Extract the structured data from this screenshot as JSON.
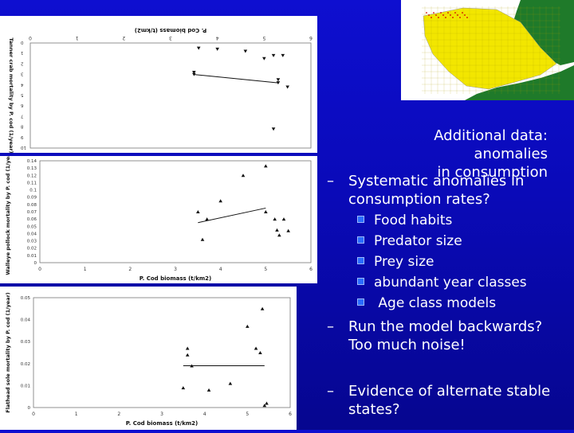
{
  "slide": {
    "heading_line1": "Additional data: anomalies",
    "heading_line2": "in consumption",
    "points": [
      {
        "marker": "–",
        "line1": "Systematic anomalies in",
        "line2": "consumption rates?"
      },
      {
        "marker": "–",
        "line1": "Run the model backwards?",
        "line2": "Too much noise!"
      },
      {
        "marker": "–",
        "line1": "Evidence of alternate stable",
        "line2": "states?"
      }
    ],
    "subpoints": [
      "Food habits",
      "Predator size",
      "Prey size",
      "abundant year classes",
      " Age class models"
    ],
    "colors": {
      "background": "#0a0ab8",
      "text": "#ffffff",
      "bullet": "#2a6cff"
    }
  },
  "map": {
    "colors": {
      "land": "#1f7a2a",
      "sea": "#ffffff",
      "grid": "#f2e600",
      "stations": "#d40000"
    }
  },
  "chart_data": [
    {
      "type": "scatter",
      "flipped_vertically": true,
      "xlabel": "P. Cod biomass (t/km2)",
      "ylabel": "Tanner crab mortality by P. cod (1/year)",
      "xlim": [
        0,
        6
      ],
      "ylim": [
        0,
        10
      ],
      "x_ticks": [
        "0",
        "1",
        "2",
        "3",
        "4",
        "5",
        "6"
      ],
      "y_ticks": [
        "0",
        "1",
        "2",
        "3",
        "4",
        "5",
        "6",
        "7",
        "8",
        "9",
        "10"
      ],
      "points": [
        [
          3.5,
          2.8
        ],
        [
          3.5,
          3.0
        ],
        [
          3.6,
          0.5
        ],
        [
          4.0,
          0.6
        ],
        [
          4.6,
          0.8
        ],
        [
          5.0,
          1.5
        ],
        [
          5.2,
          1.2
        ],
        [
          5.3,
          3.8
        ],
        [
          5.3,
          3.5
        ],
        [
          5.4,
          1.2
        ],
        [
          5.5,
          4.2
        ],
        [
          5.2,
          8.2
        ]
      ],
      "trendline": [
        [
          3.5,
          3.0
        ],
        [
          5.3,
          3.8
        ]
      ]
    },
    {
      "type": "scatter",
      "xlabel": "P. Cod biomass (t/km2)",
      "ylabel": "Walleye pollock mortality by P. cod (1/year)",
      "xlim": [
        0,
        6
      ],
      "ylim": [
        0,
        0.14
      ],
      "x_ticks": [
        "0",
        "1",
        "2",
        "3",
        "4",
        "5",
        "6"
      ],
      "y_ticks": [
        "0",
        "0.01",
        "0.02",
        "0.03",
        "0.04",
        "0.05",
        "0.06",
        "0.07",
        "0.08",
        "0.09",
        "0.1",
        "0.11",
        "0.12",
        "0.13",
        "0.14"
      ],
      "points": [
        [
          3.5,
          0.07
        ],
        [
          3.6,
          0.032
        ],
        [
          3.7,
          0.06
        ],
        [
          4.0,
          0.085
        ],
        [
          4.5,
          0.12
        ],
        [
          5.0,
          0.133
        ],
        [
          5.0,
          0.07
        ],
        [
          5.2,
          0.06
        ],
        [
          5.25,
          0.045
        ],
        [
          5.3,
          0.038
        ],
        [
          5.4,
          0.06
        ],
        [
          5.5,
          0.044
        ]
      ],
      "trendline": [
        [
          3.5,
          0.055
        ],
        [
          5.0,
          0.075
        ]
      ]
    },
    {
      "type": "scatter",
      "xlabel": "P. Cod biomass (t/km2)",
      "ylabel": "Flathead sole mortality by P. cod (1/year)",
      "xlim": [
        0,
        6
      ],
      "ylim": [
        0,
        0.05
      ],
      "x_ticks": [
        "0",
        "1",
        "2",
        "3",
        "4",
        "5",
        "6"
      ],
      "y_ticks": [
        "0",
        "0.01",
        "0.02",
        "0.03",
        "0.04",
        "0.05"
      ],
      "points": [
        [
          3.5,
          0.009
        ],
        [
          3.6,
          0.024
        ],
        [
          3.6,
          0.027
        ],
        [
          3.7,
          0.019
        ],
        [
          4.1,
          0.008
        ],
        [
          4.6,
          0.011
        ],
        [
          5.0,
          0.037
        ],
        [
          5.2,
          0.027
        ],
        [
          5.3,
          0.025
        ],
        [
          5.35,
          0.045
        ],
        [
          5.4,
          0.001
        ],
        [
          5.45,
          0.002
        ]
      ],
      "trendline": [
        [
          3.5,
          0.019
        ],
        [
          5.4,
          0.019
        ]
      ]
    }
  ]
}
